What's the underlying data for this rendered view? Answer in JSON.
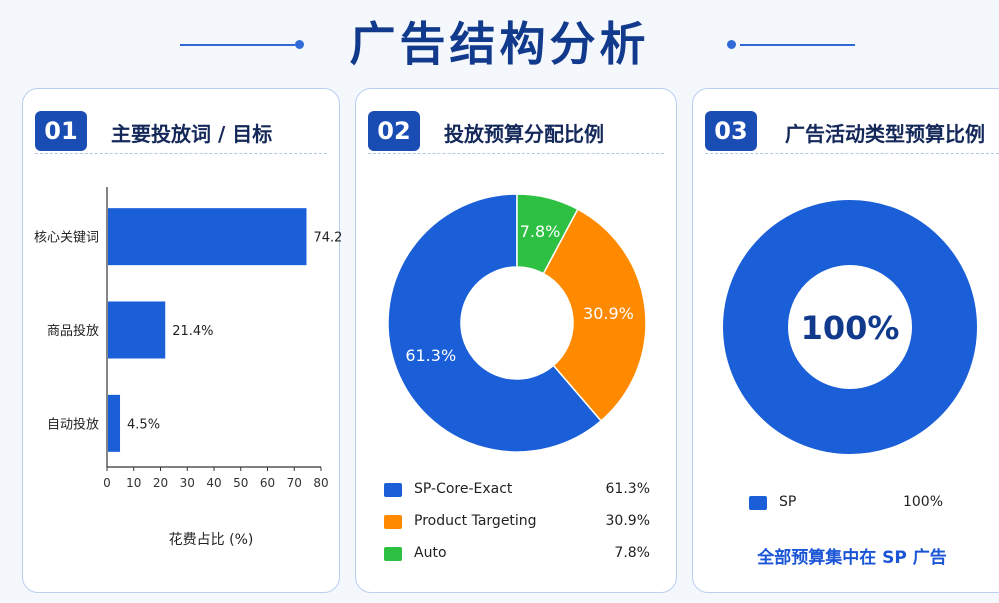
{
  "page": {
    "title": "广告结构分析"
  },
  "cards": [
    {
      "number": "01",
      "title": "主要投放词 / 目标"
    },
    {
      "number": "02",
      "title": "投放预算分配比例"
    },
    {
      "number": "03",
      "title": "广告活动类型预算比例"
    }
  ],
  "colors": {
    "blue": "#1a5fd8",
    "orange": "#ff8a00",
    "green": "#2ec043",
    "navy": "#123a8c"
  },
  "chart_data": [
    {
      "type": "bar",
      "orientation": "horizontal",
      "categories": [
        "核心关键词",
        "商品投放",
        "自动投放"
      ],
      "values": [
        74.2,
        21.4,
        4.5
      ],
      "value_labels": [
        "74.2%",
        "21.4%",
        "4.5%"
      ],
      "xlabel": "花费占比 (%)",
      "xlim": [
        0,
        80
      ],
      "xticks": [
        "0",
        "10",
        "20",
        "30",
        "40",
        "50",
        "60",
        "70",
        "80"
      ],
      "grid": false
    },
    {
      "type": "pie",
      "donut": true,
      "categories": [
        "SP-Core-Exact",
        "Product Targeting",
        "Auto"
      ],
      "values": [
        61.3,
        30.9,
        7.8
      ],
      "value_labels": [
        "61.3%",
        "30.9%",
        "7.8%"
      ],
      "legend_position": "bottom"
    },
    {
      "type": "pie",
      "donut": true,
      "categories": [
        "SP"
      ],
      "values": [
        100
      ],
      "value_labels": [
        "100%"
      ],
      "center_label": "100%",
      "legend_position": "bottom",
      "summary": "全部预算集中在 SP 广告"
    }
  ]
}
